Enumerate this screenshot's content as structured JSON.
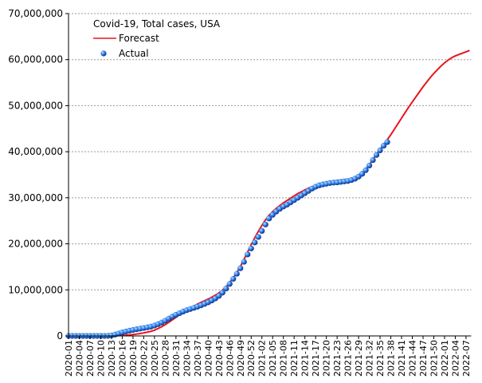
{
  "chart_data": {
    "type": "line",
    "title": "Covid-19, Total cases, USA",
    "categories": [
      "2020-01",
      null,
      null,
      "2020-04",
      null,
      null,
      "2020-07",
      null,
      null,
      "2020-10",
      null,
      null,
      "2020-13",
      null,
      null,
      "2020-16",
      null,
      null,
      "2020-19",
      null,
      null,
      "2020-22",
      null,
      null,
      "2020-25",
      null,
      null,
      "2020-28",
      null,
      null,
      "2020-31",
      null,
      null,
      "2020-34",
      null,
      null,
      "2020-37",
      null,
      null,
      "2020-40",
      null,
      null,
      "2020-43",
      null,
      null,
      "2020-46",
      null,
      null,
      "2020-49",
      null,
      null,
      "2020-52",
      null,
      null,
      "2021-02",
      null,
      null,
      "2021-05",
      null,
      null,
      "2021-08",
      null,
      null,
      "2021-11",
      null,
      null,
      "2021-14",
      null,
      null,
      "2021-17",
      null,
      null,
      "2021-20",
      null,
      null,
      "2021-23",
      null,
      null,
      "2021-26",
      null,
      null,
      "2021-29",
      null,
      null,
      "2021-32",
      null,
      null,
      "2021-35",
      null,
      null,
      "2021-38",
      null,
      null,
      "2021-41",
      null,
      null,
      "2021-44",
      null,
      null,
      "2021-47",
      null,
      null,
      "2021-50",
      null,
      null,
      "2022-01",
      null,
      null,
      "2022-04",
      null,
      null,
      "2022-07",
      null
    ],
    "series": [
      {
        "name": "Forecast",
        "color": "#e8141c",
        "style": "line",
        "values": [
          0,
          0,
          0,
          0,
          0,
          0,
          0,
          0,
          0,
          0,
          0,
          0,
          10000,
          30000,
          60000,
          100000,
          150000,
          220000,
          300000,
          400000,
          520000,
          660000,
          820000,
          1000000,
          1250000,
          1600000,
          2000000,
          2450000,
          2950000,
          3500000,
          4050000,
          4600000,
          5100000,
          5600000,
          6050000,
          6500000,
          6900000,
          7300000,
          7650000,
          8000000,
          8400000,
          8850000,
          9350000,
          9950000,
          10700000,
          11600000,
          12600000,
          13800000,
          15100000,
          16600000,
          18200000,
          19800000,
          21300000,
          22700000,
          24000000,
          25200000,
          26200000,
          27000000,
          27700000,
          28300000,
          28900000,
          29400000,
          29900000,
          30400000,
          30900000,
          31300000,
          31700000,
          32100000,
          32400000,
          32700000,
          32950000,
          33150000,
          33300000,
          33450000,
          33600000,
          33750000,
          33850000,
          33950000,
          34050000,
          34100000,
          34200000,
          34700000,
          35300000,
          36100000,
          37100000,
          38300000,
          39400000,
          40500000,
          41500000,
          42600000,
          43700000,
          44900000,
          46100000,
          47300000,
          48500000,
          49700000,
          50800000,
          51900000,
          53000000,
          54100000,
          55100000,
          56100000,
          57000000,
          57800000,
          58600000,
          59300000,
          59900000,
          60400000,
          60800000,
          61100000,
          61400000,
          61700000,
          62000000
        ]
      },
      {
        "name": "Actual",
        "color": "#1a5fd0",
        "style": "dots",
        "values": [
          0,
          0,
          0,
          0,
          0,
          0,
          0,
          0,
          0,
          0,
          1000,
          20000,
          120000,
          300000,
          530000,
          760000,
          960000,
          1150000,
          1300000,
          1450000,
          1580000,
          1720000,
          1860000,
          2020000,
          2250000,
          2550000,
          2900000,
          3300000,
          3750000,
          4200000,
          4600000,
          4950000,
          5300000,
          5600000,
          5850000,
          6100000,
          6350000,
          6650000,
          6950000,
          7300000,
          7700000,
          8150000,
          8700000,
          9400000,
          10300000,
          11300000,
          12400000,
          13500000,
          14700000,
          16100000,
          17700000,
          19000000,
          20300000,
          21500000,
          22800000,
          24200000,
          25500000,
          26300000,
          27000000,
          27600000,
          28100000,
          28500000,
          29000000,
          29500000,
          30000000,
          30500000,
          31000000,
          31500000,
          32000000,
          32400000,
          32700000,
          32900000,
          33050000,
          33200000,
          33300000,
          33350000,
          33450000,
          33550000,
          33650000,
          33850000,
          34150000,
          34600000,
          35200000,
          36000000,
          37000000,
          38200000,
          39300000,
          40300000,
          41300000,
          42100000,
          null,
          null,
          null,
          null,
          null,
          null,
          null,
          null,
          null,
          null,
          null,
          null,
          null,
          null,
          null,
          null,
          null,
          null,
          null,
          null,
          null,
          null,
          null
        ]
      }
    ],
    "ylim": [
      0,
      70000000
    ],
    "yticks": [
      0,
      {
        "value": 10000000,
        "label": "10,000,000"
      },
      {
        "value": 20000000,
        "label": "20,000,000"
      },
      {
        "value": 30000000,
        "label": "30,000,000"
      },
      {
        "value": 40000000,
        "label": "40,000,000"
      },
      {
        "value": 50000000,
        "label": "50,000,000"
      },
      {
        "value": 60000000,
        "label": "60,000,000"
      },
      {
        "value": 70000000,
        "label": "70,000,000"
      }
    ],
    "grid": true
  }
}
